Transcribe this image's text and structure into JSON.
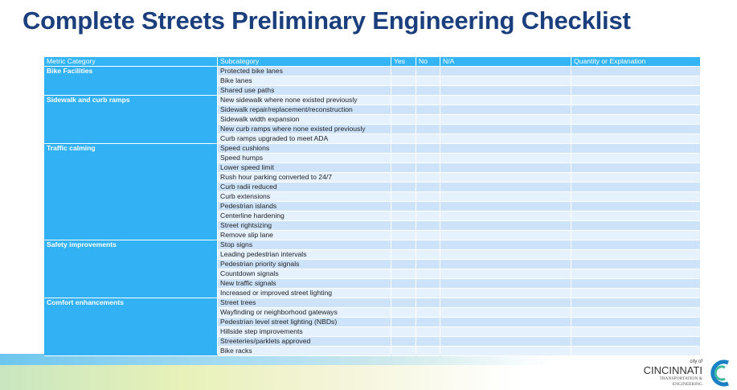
{
  "title": "Complete Streets Preliminary Engineering Checklist",
  "colors": {
    "title": "#1b3f7d",
    "header": "#33b5f5",
    "category": "#33b1f5",
    "row_odd": "#cde3fa",
    "row_even": "#e5f1fd"
  },
  "table": {
    "headers": [
      "Metric Category",
      "Subcategory",
      "Yes",
      "No",
      "N/A",
      "Quantity or Explanation"
    ],
    "groups": [
      {
        "category": "Bike Facilities",
        "items": [
          "Protected bike lanes",
          "Bike lanes",
          "Shared use paths"
        ]
      },
      {
        "category": "Sidewalk and curb ramps",
        "items": [
          "New sidewalk where none existed previously",
          "Sidewalk repair/replacement/reconstruction",
          "Sidewalk width expansion",
          "New curb ramps where none existed previously",
          "Curb ramps upgraded to meet ADA"
        ]
      },
      {
        "category": "Traffic calming",
        "items": [
          "Speed cushions",
          "Speed humps",
          "Lower speed limit",
          "Rush hour parking converted to 24/7",
          "Curb radii reduced",
          "Curb extensions",
          "Pedestrian islands",
          "Centerline hardening",
          "Street rightsizing",
          "Remove slip lane"
        ]
      },
      {
        "category": "Safety improvements",
        "items": [
          "Stop signs",
          "Leading pedestrian intervals",
          "Pedestrian priority signals",
          "Countdown signals",
          "New traffic signals",
          "Increased or improved street lighting"
        ]
      },
      {
        "category": "Comfort enhancements",
        "items": [
          "Street trees",
          "Wayfinding or neighborhood gateways",
          "Pedestrian level street lighting (NBDs)",
          "Hillside step improvements",
          "Streeteries/parklets approved",
          "Bike racks"
        ]
      }
    ]
  },
  "logo": {
    "small": "city of",
    "name": "CINCINNATI",
    "dept1": "TRANSPORTATION &",
    "dept2": "ENGINEERING"
  }
}
